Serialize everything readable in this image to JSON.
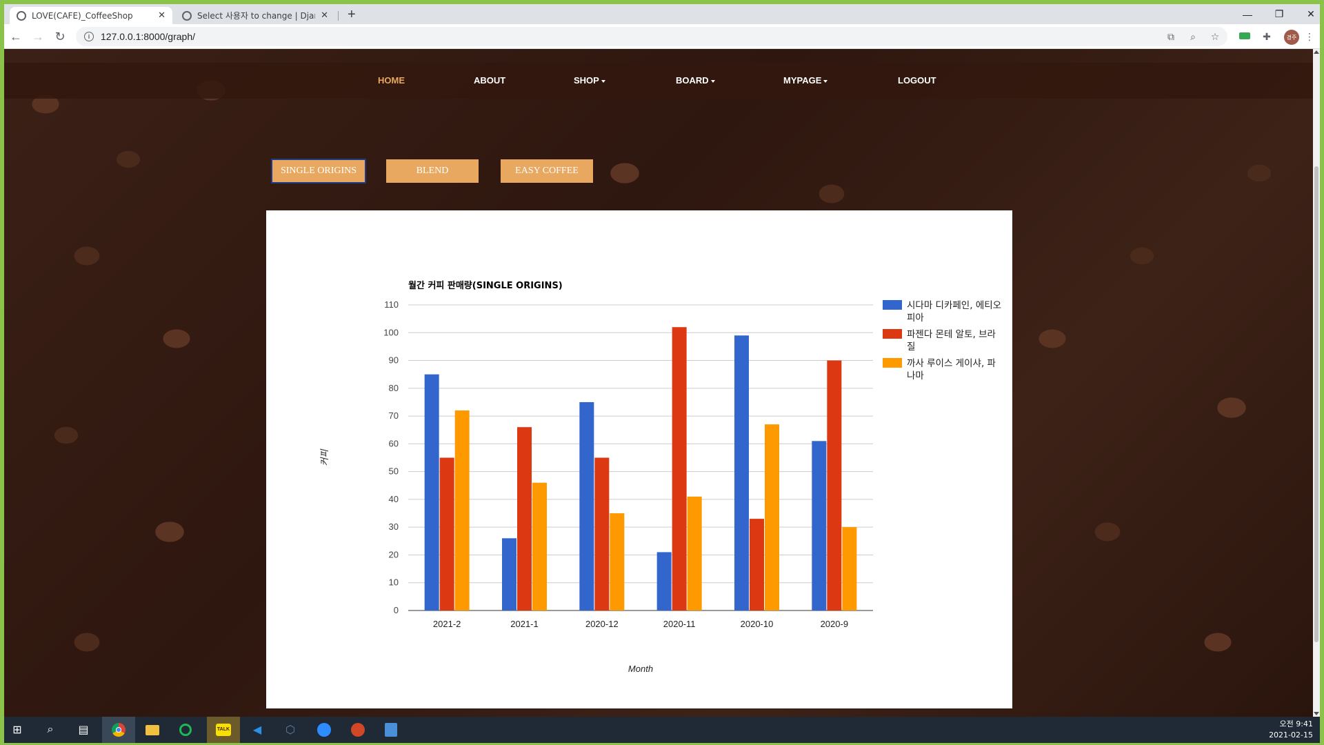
{
  "browser": {
    "tabs": [
      {
        "title": "LOVE(CAFE)_CoffeeShop",
        "active": true
      },
      {
        "title": "Select 사용자 to change | Djang",
        "active": false
      }
    ],
    "new_tab": "+",
    "window_controls": {
      "minimize": "—",
      "maximize": "❐",
      "close": "✕"
    },
    "url": "127.0.0.1:8000/graph/",
    "avatar_text": "경주"
  },
  "nav": {
    "items": [
      {
        "label": "HOME",
        "active": true,
        "dropdown": false
      },
      {
        "label": "ABOUT",
        "active": false,
        "dropdown": false
      },
      {
        "label": "SHOP",
        "active": false,
        "dropdown": true
      },
      {
        "label": "BOARD",
        "active": false,
        "dropdown": true
      },
      {
        "label": "MYPAGE",
        "active": false,
        "dropdown": true
      },
      {
        "label": "LOGOUT",
        "active": false,
        "dropdown": false
      }
    ]
  },
  "filters": {
    "single_origins": "SINGLE ORIGINS",
    "blend": "BLEND",
    "easy_coffee": "EASY COFFEE",
    "selected": "SINGLE ORIGINS"
  },
  "colors": {
    "accent": "#e8a860",
    "series_blue": "#3366cc",
    "series_red": "#dc3912",
    "series_orange": "#ff9900"
  },
  "chart_data": {
    "type": "bar",
    "title": "월간 커피 판매량(SINGLE ORIGINS)",
    "xlabel": "Month",
    "ylabel": "커피",
    "categories": [
      "2021-2",
      "2021-1",
      "2020-12",
      "2020-11",
      "2020-10",
      "2020-9"
    ],
    "series": [
      {
        "name": "시다마 디카페인, 에티오피아",
        "color": "#3366cc",
        "values": [
          85,
          26,
          75,
          21,
          99,
          61
        ]
      },
      {
        "name": "파젠다 몬테 알토, 브라질",
        "color": "#dc3912",
        "values": [
          55,
          66,
          55,
          102,
          33,
          90
        ]
      },
      {
        "name": "까사 루이스 게이샤, 파나마",
        "color": "#ff9900",
        "values": [
          72,
          46,
          35,
          41,
          67,
          30
        ]
      }
    ],
    "ylim": [
      0,
      110
    ],
    "yticks": [
      0,
      10,
      20,
      30,
      40,
      50,
      60,
      70,
      80,
      90,
      100,
      110
    ],
    "grid": true,
    "legend": "right"
  },
  "taskbar": {
    "icons": [
      "windows-start-icon",
      "search-icon",
      "task-view-icon",
      "chrome-icon",
      "file-explorer-icon",
      "maps-icon",
      "kakaotalk-icon",
      "vscode-icon",
      "app-icon",
      "zoom-icon",
      "powerpoint-icon",
      "notes-icon"
    ],
    "kakaotalk_label": "TALK",
    "time": "오전 9:41",
    "date": "2021-02-15"
  }
}
